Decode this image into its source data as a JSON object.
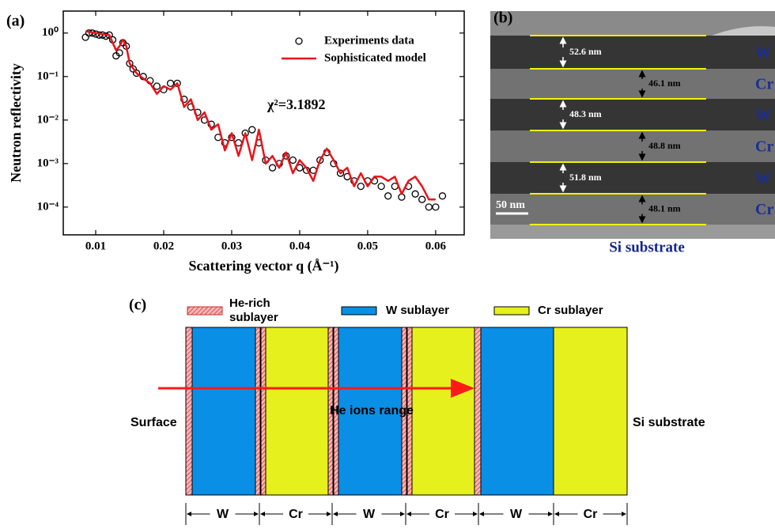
{
  "chart_data": {
    "type": "line",
    "panel_label": "(a)",
    "x_label": "Scattering vector q (Å⁻¹)",
    "y_label": "Neutron reflectivity",
    "annotation": "χ²=3.1892",
    "xlim": [
      0.00523,
      0.0642
    ],
    "ylim": [
      2.3e-05,
      3.2
    ],
    "log_y": true,
    "legend": "upper right",
    "xticks": [
      0.01,
      0.02,
      0.03,
      0.04,
      0.05,
      0.06
    ],
    "yticks": [
      {
        "value": 1,
        "label": "10⁰"
      },
      {
        "value": 0.1,
        "label": "10⁻¹"
      },
      {
        "value": 0.01,
        "label": "10⁻²"
      },
      {
        "value": 0.001,
        "label": "10⁻³"
      },
      {
        "value": 0.0001,
        "label": "10⁻⁴"
      }
    ],
    "series": [
      {
        "name": "Experiments data",
        "kind": "scatter",
        "color": "#000000",
        "x": [
          0.0085,
          0.009,
          0.0095,
          0.01,
          0.0105,
          0.011,
          0.0115,
          0.012,
          0.0125,
          0.013,
          0.0135,
          0.014,
          0.0145,
          0.015,
          0.0155,
          0.016,
          0.017,
          0.018,
          0.019,
          0.02,
          0.021,
          0.022,
          0.023,
          0.024,
          0.025,
          0.026,
          0.027,
          0.028,
          0.029,
          0.03,
          0.031,
          0.032,
          0.033,
          0.034,
          0.035,
          0.036,
          0.037,
          0.038,
          0.039,
          0.04,
          0.041,
          0.042,
          0.043,
          0.044,
          0.045,
          0.046,
          0.047,
          0.048,
          0.049,
          0.05,
          0.051,
          0.052,
          0.053,
          0.054,
          0.055,
          0.056,
          0.057,
          0.058,
          0.059,
          0.06,
          0.061
        ],
        "values": [
          0.8,
          1.0,
          1.0,
          0.95,
          0.9,
          0.9,
          0.85,
          0.9,
          0.7,
          0.3,
          0.35,
          0.6,
          0.5,
          0.2,
          0.15,
          0.12,
          0.1,
          0.08,
          0.06,
          0.05,
          0.07,
          0.07,
          0.03,
          0.02,
          0.015,
          0.01,
          0.008,
          0.004,
          0.003,
          0.004,
          0.003,
          0.005,
          0.006,
          0.003,
          0.0012,
          0.0008,
          0.001,
          0.0015,
          0.0012,
          0.0008,
          0.0007,
          0.0007,
          0.0012,
          0.0018,
          0.001,
          0.0006,
          0.0005,
          0.0004,
          0.0003,
          0.0004,
          0.0004,
          0.0003,
          0.00018,
          0.0003,
          0.00017,
          0.0003,
          0.0002,
          0.00015,
          0.0001,
          0.0001,
          0.00018
        ]
      },
      {
        "name": "Sophisticated model",
        "kind": "line",
        "color": "#e8141b",
        "x": [
          0.0085,
          0.01,
          0.012,
          0.013,
          0.0135,
          0.014,
          0.0145,
          0.015,
          0.016,
          0.017,
          0.018,
          0.019,
          0.02,
          0.021,
          0.022,
          0.023,
          0.024,
          0.025,
          0.026,
          0.027,
          0.028,
          0.029,
          0.03,
          0.031,
          0.032,
          0.033,
          0.034,
          0.035,
          0.036,
          0.037,
          0.038,
          0.039,
          0.04,
          0.041,
          0.042,
          0.043,
          0.044,
          0.045,
          0.046,
          0.047,
          0.048,
          0.049,
          0.05,
          0.051,
          0.052,
          0.053,
          0.054,
          0.055,
          0.056,
          0.057,
          0.058,
          0.059,
          0.06
        ],
        "values": [
          1.1,
          1.0,
          0.9,
          0.4,
          0.5,
          0.7,
          0.5,
          0.2,
          0.12,
          0.09,
          0.07,
          0.04,
          0.06,
          0.05,
          0.07,
          0.02,
          0.03,
          0.01,
          0.015,
          0.006,
          0.008,
          0.002,
          0.005,
          0.0015,
          0.005,
          0.0012,
          0.006,
          0.001,
          0.0015,
          0.0008,
          0.0018,
          0.0006,
          0.0012,
          0.0008,
          0.0004,
          0.0012,
          0.0022,
          0.0012,
          0.0006,
          0.0008,
          0.0003,
          0.0006,
          0.0003,
          0.0005,
          0.0005,
          0.0004,
          0.0005,
          0.0002,
          0.0004,
          0.0005,
          0.0003,
          0.00015,
          0.00015
        ]
      }
    ]
  },
  "panel_b": {
    "label": "(b)",
    "thicknesses": [
      "52.6 nm",
      "46.1 nm",
      "48.3 nm",
      "48.8 nm",
      "51.8 nm",
      "48.1 nm"
    ],
    "layers": [
      "W",
      "Cr",
      "W",
      "Cr",
      "W",
      "Cr"
    ],
    "scale_bar": "50 nm",
    "substrate": "Si substrate"
  },
  "panel_c": {
    "label": "(c)",
    "legend": {
      "he_rich": [
        "He-rich",
        "sublayer"
      ],
      "w": "W sublayer",
      "cr": "Cr sublayer"
    },
    "surface": "Surface",
    "substrate": "Si substrate",
    "arrow_label": "He ions range",
    "dimensions": [
      "W",
      "Cr",
      "W",
      "Cr",
      "W",
      "Cr"
    ]
  }
}
